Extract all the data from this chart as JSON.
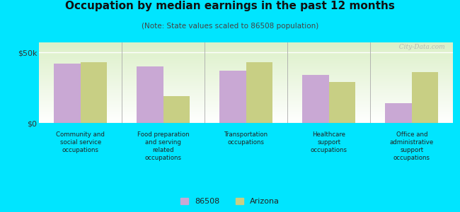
{
  "title": "Occupation by median earnings in the past 12 months",
  "subtitle": "(Note: State values scaled to 86508 population)",
  "categories": [
    "Community and\nsocial service\noccupations",
    "Food preparation\nand serving\nrelated\noccupations",
    "Transportation\noccupations",
    "Healthcare\nsupport\noccupations",
    "Office and\nadministrative\nsupport\noccupations"
  ],
  "values_86508": [
    42000,
    40000,
    37000,
    34000,
    14000
  ],
  "values_arizona": [
    43000,
    19000,
    43000,
    29000,
    36000
  ],
  "color_86508": "#c9a8d4",
  "color_arizona": "#c8cf84",
  "ylim": [
    0,
    57000
  ],
  "yticks": [
    0,
    50000
  ],
  "ytick_labels": [
    "$0",
    "$50k"
  ],
  "plot_bg_top": "#f0f8e8",
  "plot_bg_bottom": "#ffffff",
  "outer_background": "#00e5ff",
  "legend_label_86508": "86508",
  "legend_label_arizona": "Arizona",
  "watermark": "  City-Data.com"
}
